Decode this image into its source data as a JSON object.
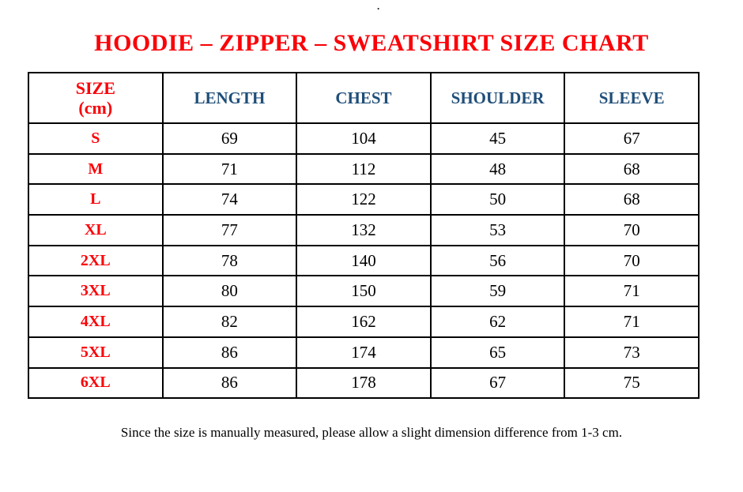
{
  "page": {
    "stray_dot": "."
  },
  "title": "HOODIE – ZIPPER – SWEATSHIRT SIZE CHART",
  "table": {
    "header": {
      "size_line1": "SIZE",
      "size_line2": "(cm)",
      "columns": [
        "LENGTH",
        "CHEST",
        "SHOULDER",
        "SLEEVE"
      ]
    },
    "rows": [
      {
        "size": "S",
        "length": "69",
        "chest": "104",
        "shoulder": "45",
        "sleeve": "67"
      },
      {
        "size": "M",
        "length": "71",
        "chest": "112",
        "shoulder": "48",
        "sleeve": "68"
      },
      {
        "size": "L",
        "length": "74",
        "chest": "122",
        "shoulder": "50",
        "sleeve": "68"
      },
      {
        "size": "XL",
        "length": "77",
        "chest": "132",
        "shoulder": "53",
        "sleeve": "70"
      },
      {
        "size": "2XL",
        "length": "78",
        "chest": "140",
        "shoulder": "56",
        "sleeve": "70"
      },
      {
        "size": "3XL",
        "length": "80",
        "chest": "150",
        "shoulder": "59",
        "sleeve": "71"
      },
      {
        "size": "4XL",
        "length": "82",
        "chest": "162",
        "shoulder": "62",
        "sleeve": "71"
      },
      {
        "size": "5XL",
        "length": "86",
        "chest": "174",
        "shoulder": "65",
        "sleeve": "73"
      },
      {
        "size": "6XL",
        "length": "86",
        "chest": "178",
        "shoulder": "67",
        "sleeve": "75"
      }
    ]
  },
  "footer": {
    "note": "Since the size is manually measured, please allow a slight dimension difference from 1-3 cm."
  },
  "colors": {
    "title_red": "#fb0007",
    "size_label_red": "#fb0007",
    "header_blue": "#1f4e79",
    "text_black": "#000000",
    "border_black": "#000000",
    "background": "#ffffff"
  }
}
